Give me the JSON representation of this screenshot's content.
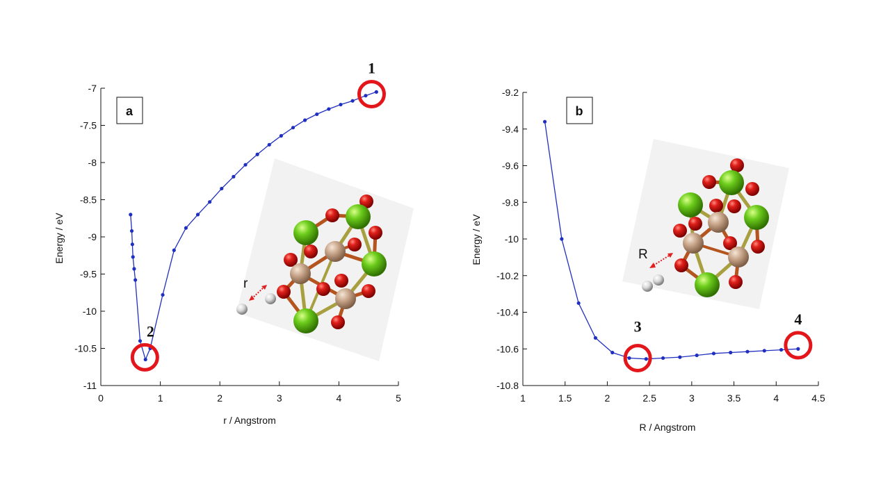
{
  "chart_data": [
    {
      "type": "line",
      "panel_label": "a",
      "xlabel": "r / Angstrom",
      "ylabel": "Energy / eV",
      "xlim": [
        0,
        5
      ],
      "ylim": [
        -11,
        -7
      ],
      "xticks": [
        0,
        1,
        2,
        3,
        4,
        5
      ],
      "yticks": [
        -11,
        -10.5,
        -10,
        -9.5,
        -9,
        -8.5,
        -8,
        -7.5,
        -7
      ],
      "line_color": "#1f2fbf",
      "x": [
        0.5,
        0.52,
        0.53,
        0.54,
        0.56,
        0.58,
        0.66,
        0.75,
        0.83,
        1.04,
        1.23,
        1.43,
        1.63,
        1.83,
        2.03,
        2.23,
        2.43,
        2.63,
        2.83,
        3.03,
        3.23,
        3.43,
        3.63,
        3.83,
        4.03,
        4.23,
        4.45,
        4.63
      ],
      "y": [
        -8.7,
        -8.92,
        -9.1,
        -9.27,
        -9.43,
        -9.58,
        -10.4,
        -10.65,
        -10.5,
        -9.78,
        -9.18,
        -8.88,
        -8.7,
        -8.53,
        -8.35,
        -8.19,
        -8.03,
        -7.89,
        -7.76,
        -7.64,
        -7.53,
        -7.43,
        -7.35,
        -7.28,
        -7.22,
        -7.17,
        -7.1,
        -7.05
      ],
      "inset_label": "r",
      "markers": [
        {
          "label": "1",
          "x": 4.55,
          "y": -7.08
        },
        {
          "label": "2",
          "x": 0.74,
          "y": -10.62
        }
      ]
    },
    {
      "type": "line",
      "panel_label": "b",
      "xlabel": "R / Angstrom",
      "ylabel": "Energy / eV",
      "xlim": [
        1,
        4.5
      ],
      "ylim": [
        -10.8,
        -9.2
      ],
      "xticks": [
        1,
        1.5,
        2,
        2.5,
        3,
        3.5,
        4,
        4.5
      ],
      "yticks": [
        -10.8,
        -10.6,
        -10.4,
        -10.2,
        -10,
        -9.8,
        -9.6,
        -9.4,
        -9.2
      ],
      "line_color": "#1f2fbf",
      "x": [
        1.26,
        1.46,
        1.66,
        1.86,
        2.06,
        2.26,
        2.46,
        2.66,
        2.86,
        3.06,
        3.26,
        3.46,
        3.66,
        3.86,
        4.06,
        4.26
      ],
      "y": [
        -9.36,
        -10.0,
        -10.35,
        -10.54,
        -10.62,
        -10.65,
        -10.655,
        -10.65,
        -10.645,
        -10.635,
        -10.625,
        -10.62,
        -10.615,
        -10.61,
        -10.605,
        -10.6
      ],
      "inset_label": "R",
      "markers": [
        {
          "label": "3",
          "x": 2.36,
          "y": -10.65
        },
        {
          "label": "4",
          "x": 4.26,
          "y": -10.58
        }
      ]
    }
  ]
}
